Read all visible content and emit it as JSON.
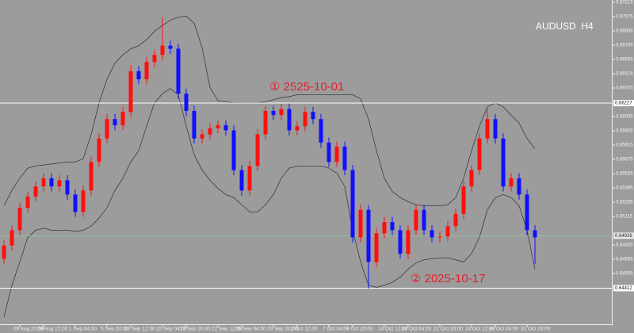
{
  "chart_data": {
    "type": "candlestick",
    "title": "AUDUSD  H4",
    "annotations": [
      "① 2525-10-01",
      "② 2025-10-17"
    ],
    "up_color": "#ff1010",
    "down_color": "#1010ff",
    "band_color": "#3c3c3c",
    "ylim": [
      0.6405,
      0.67238
    ],
    "yticks": [
      0.67215,
      0.67075,
      0.66935,
      0.66795,
      0.66655,
      0.66515,
      0.66375,
      0.66095,
      0.65955,
      0.65815,
      0.65675,
      0.65535,
      0.65395,
      0.65255,
      0.65115,
      0.64835,
      0.64695,
      0.64555
    ],
    "price_lines": [
      0.66227,
      0.64412
    ],
    "bid": 0.64926,
    "categories": [
      null,
      null,
      "26 Aug 20:00",
      null,
      null,
      "29 Aug 12:00",
      null,
      null,
      null,
      "1 Sep 04:00",
      null,
      null,
      null,
      "5 Sep 20:00",
      null,
      null,
      "10 Sep 12:00",
      null,
      null,
      null,
      "15 Sep 04:00",
      null,
      null,
      "17 Sep 20:00",
      null,
      null,
      null,
      "22 Sep 12:00",
      null,
      null,
      "25 Sep 04:00",
      null,
      null,
      null,
      "29 Sep 20:00",
      null,
      null,
      "2 Oct 12:00",
      null,
      null,
      null,
      "7 Oct 04:00",
      null,
      null,
      "9 Oct 20:00",
      null,
      null,
      null,
      "14 Oct 12:00",
      null,
      null,
      "17 Oct 04:00",
      null,
      null,
      null,
      "21 Oct 20:00",
      null,
      null,
      null,
      "24 Oct 12:00",
      null,
      null,
      "29 Oct 04:00",
      null,
      null,
      null,
      "31 Oct 20:00",
      null
    ],
    "open": [
      0.647,
      0.6483,
      0.6498,
      0.652,
      0.6531,
      0.6541,
      0.6549,
      0.6541,
      0.6547,
      0.6533,
      0.6516,
      0.6537,
      0.6565,
      0.6588,
      0.6607,
      0.6601,
      0.6614,
      0.6654,
      0.6646,
      0.6663,
      0.667,
      0.6679,
      0.6676,
      0.6632,
      0.6615,
      0.6588,
      0.6592,
      0.6598,
      0.6601,
      0.6596,
      0.6557,
      0.6537,
      0.6561,
      0.6592,
      0.6615,
      0.6611,
      0.6617,
      0.6596,
      0.66,
      0.6614,
      0.6607,
      0.6584,
      0.6565,
      0.658,
      0.6557,
      0.6491,
      0.6518,
      0.6467,
      0.6495,
      0.6506,
      0.6498,
      0.6475,
      0.6498,
      0.6518,
      0.6498,
      0.6491,
      0.6492,
      0.6502,
      0.6514,
      0.6541,
      0.6557,
      0.6588,
      0.6607,
      0.6588,
      0.6541,
      0.6549,
      0.6533,
      0.6498
    ],
    "high": [
      0.6488,
      0.6503,
      0.6525,
      0.6536,
      0.6546,
      0.6554,
      0.6554,
      0.6552,
      0.6552,
      0.6538,
      0.6542,
      0.657,
      0.6593,
      0.6612,
      0.6612,
      0.6619,
      0.666,
      0.6659,
      0.6668,
      0.6675,
      0.6707,
      0.6684,
      0.6681,
      0.6637,
      0.662,
      0.6597,
      0.6603,
      0.6606,
      0.6606,
      0.6601,
      0.6562,
      0.6566,
      0.6597,
      0.662,
      0.662,
      0.6622,
      0.6622,
      0.6605,
      0.6619,
      0.6619,
      0.6612,
      0.6589,
      0.6585,
      0.6585,
      0.6562,
      0.6523,
      0.6523,
      0.65,
      0.6511,
      0.6511,
      0.6503,
      0.6503,
      0.6523,
      0.6523,
      0.6503,
      0.6497,
      0.6507,
      0.6519,
      0.6546,
      0.6562,
      0.6593,
      0.6617,
      0.6612,
      0.6593,
      0.6554,
      0.6554,
      0.6538,
      0.6503
    ],
    "low": [
      0.6465,
      0.6478,
      0.6493,
      0.6515,
      0.6526,
      0.6536,
      0.6536,
      0.6536,
      0.6528,
      0.6511,
      0.6511,
      0.6532,
      0.656,
      0.6583,
      0.6596,
      0.6596,
      0.6609,
      0.6641,
      0.6641,
      0.6658,
      0.6665,
      0.6671,
      0.6627,
      0.661,
      0.6583,
      0.6583,
      0.6587,
      0.6593,
      0.6591,
      0.6552,
      0.6532,
      0.6532,
      0.6556,
      0.6587,
      0.6606,
      0.6606,
      0.6591,
      0.6591,
      0.6595,
      0.6602,
      0.6579,
      0.656,
      0.656,
      0.6552,
      0.6486,
      0.6486,
      0.6441,
      0.6462,
      0.649,
      0.6493,
      0.647,
      0.647,
      0.6493,
      0.6493,
      0.6486,
      0.6486,
      0.6487,
      0.6497,
      0.6509,
      0.6536,
      0.6552,
      0.6583,
      0.6583,
      0.6536,
      0.6536,
      0.6528,
      0.6493,
      0.6465
    ],
    "close": [
      0.6483,
      0.6498,
      0.652,
      0.6531,
      0.6541,
      0.6549,
      0.6541,
      0.6547,
      0.6533,
      0.6516,
      0.6537,
      0.6565,
      0.6588,
      0.6607,
      0.6601,
      0.6614,
      0.6654,
      0.6646,
      0.6663,
      0.667,
      0.6679,
      0.6676,
      0.6632,
      0.6615,
      0.6588,
      0.6592,
      0.6598,
      0.6601,
      0.6596,
      0.6557,
      0.6537,
      0.6561,
      0.6592,
      0.6615,
      0.6611,
      0.6617,
      0.6596,
      0.66,
      0.6614,
      0.6607,
      0.6584,
      0.6565,
      0.658,
      0.6557,
      0.6491,
      0.6518,
      0.6467,
      0.6495,
      0.6506,
      0.6498,
      0.6475,
      0.6498,
      0.6518,
      0.6498,
      0.6491,
      0.6492,
      0.6502,
      0.6514,
      0.6541,
      0.6557,
      0.6588,
      0.6607,
      0.6588,
      0.6541,
      0.6549,
      0.6533,
      0.6498,
      0.6491
    ],
    "bands": {
      "upper": [
        0.6522,
        0.6537,
        0.6549,
        0.6559,
        0.6561,
        0.6562,
        0.6563,
        0.6564,
        0.6565,
        0.6565,
        0.6568,
        0.6592,
        0.6623,
        0.6646,
        0.6662,
        0.667,
        0.6676,
        0.6679,
        0.6685,
        0.6693,
        0.6699,
        0.6704,
        0.6707,
        0.6708,
        0.6701,
        0.6677,
        0.6638,
        0.6625,
        0.6624,
        0.6623,
        0.6623,
        0.6623,
        0.6623,
        0.6624,
        0.6626,
        0.6628,
        0.6629,
        0.6631,
        0.6631,
        0.6631,
        0.6631,
        0.6631,
        0.6631,
        0.6631,
        0.6631,
        0.6627,
        0.6607,
        0.6576,
        0.6549,
        0.6536,
        0.653,
        0.6526,
        0.6523,
        0.6522,
        0.6522,
        0.6522,
        0.6523,
        0.653,
        0.6549,
        0.6576,
        0.66,
        0.6619,
        0.6623,
        0.6619,
        0.6611,
        0.6603,
        0.6588,
        0.6578
      ],
      "lower": [
        0.6413,
        0.6444,
        0.6467,
        0.6491,
        0.6498,
        0.65,
        0.6498,
        0.6498,
        0.6498,
        0.6497,
        0.6498,
        0.6502,
        0.651,
        0.652,
        0.6537,
        0.6549,
        0.6565,
        0.6576,
        0.66,
        0.6623,
        0.6632,
        0.6637,
        0.6631,
        0.66,
        0.6572,
        0.6557,
        0.6547,
        0.6539,
        0.6533,
        0.653,
        0.6523,
        0.6516,
        0.6516,
        0.6523,
        0.6533,
        0.6549,
        0.6559,
        0.6561,
        0.6561,
        0.6561,
        0.6561,
        0.6559,
        0.6554,
        0.6541,
        0.6498,
        0.6467,
        0.6444,
        0.6442,
        0.6444,
        0.6447,
        0.6452,
        0.646,
        0.6466,
        0.6469,
        0.647,
        0.6471,
        0.6471,
        0.6469,
        0.6467,
        0.6475,
        0.6491,
        0.6518,
        0.653,
        0.6533,
        0.653,
        0.6522,
        0.6498,
        0.646
      ]
    }
  }
}
